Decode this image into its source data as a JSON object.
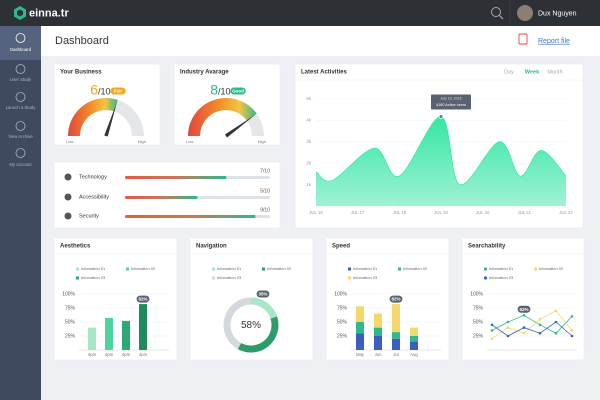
{
  "topbar": {
    "logo": "einna.tr",
    "user": "Dux Nguyen"
  },
  "sidebar": [
    "Dashboard",
    "User Study",
    "Launch a Study",
    "View Archive",
    "My Account"
  ],
  "header": {
    "title": "Dashboard",
    "report": "Report file"
  },
  "business": {
    "title": "Your Business",
    "score": 6,
    "out_of": "/10",
    "badge": "Fair",
    "low": "Low",
    "high": "High",
    "color": "#f5a623"
  },
  "industry": {
    "title": "Industry Avarage",
    "score": 8,
    "out_of": "/10",
    "badge": "Good",
    "low": "Low",
    "high": "High",
    "color": "#2fb88a"
  },
  "progress": [
    {
      "label": "Technology",
      "value": "7/10"
    },
    {
      "label": "Accessibility",
      "value": "5/10"
    },
    {
      "label": "Security",
      "value": "9/10"
    }
  ],
  "activities": {
    "title": "Latest Activities",
    "tabs": [
      "Day",
      "Week",
      "Month"
    ],
    "active_tab": 1,
    "ylim": [
      0,
      5
    ],
    "yticks": [
      {
        "value": 1,
        "label": "1k"
      },
      {
        "value": 2,
        "label": "2k"
      },
      {
        "value": 3,
        "label": "3k"
      },
      {
        "value": 4,
        "label": "4k"
      },
      {
        "value": 5,
        "label": "5k"
      }
    ],
    "xlim": [
      16,
      22
    ],
    "xticks": [
      {
        "value": 16,
        "label": "JUL 16"
      },
      {
        "value": 17,
        "label": "JUL 17"
      },
      {
        "value": 18,
        "label": "JUL 18"
      },
      {
        "value": 19,
        "label": "JUL 19"
      },
      {
        "value": 20,
        "label": "JUL 20"
      },
      {
        "value": 21,
        "label": "JUL 21"
      },
      {
        "value": 22,
        "label": "JUL 22"
      }
    ],
    "x": [
      16,
      16.4,
      17.4,
      18,
      19,
      19.45,
      20.4,
      20.9,
      21.4,
      22
    ],
    "values": [
      1.6,
      1.2,
      2.7,
      1.4,
      4.18,
      1.0,
      3.0,
      1.4,
      2.6,
      1.4
    ],
    "color": "#3de8a8",
    "tooltip": {
      "date": "July 19, 2016",
      "text": "4180 Active users"
    }
  },
  "aesthetics": {
    "title": "Aesthetics",
    "legend": [
      {
        "name": "Infomation 01",
        "color": "#a8e6c8"
      },
      {
        "name": "Infomation 02",
        "color": "#4bd3a0"
      },
      {
        "name": "Infomation 03",
        "color": "#2aa876"
      }
    ],
    "ylim": [
      0,
      100
    ],
    "yticks": [
      {
        "value": 100,
        "label": "100%"
      },
      {
        "value": 75,
        "label": "75%"
      },
      {
        "value": 50,
        "label": "50%"
      },
      {
        "value": 25,
        "label": "25%"
      }
    ],
    "categories": [
      "4pm",
      "4pm",
      "4pm",
      "4pm"
    ],
    "values": [
      40,
      57,
      52,
      82
    ],
    "colors": [
      "#a8e6c8",
      "#4bd3a0",
      "#2aa876",
      "#1f8a5e"
    ],
    "badge": "82%"
  },
  "navigation": {
    "title": "Navigation",
    "legend": [
      {
        "name": "Infomation 01",
        "color": "#a8e6c8"
      },
      {
        "name": "Infomation 02",
        "color": "#2e9c6a"
      },
      {
        "name": "Infomation 03",
        "color": "#d5d9dd"
      }
    ],
    "values": [
      20,
      38,
      42
    ],
    "center": "58%",
    "badge": "35%"
  },
  "speed": {
    "title": "Speed",
    "legend": [
      {
        "name": "Infomation 01",
        "color": "#3b5fc0"
      },
      {
        "name": "Infomation 02",
        "color": "#2fb88a"
      },
      {
        "name": "Infomation 03",
        "color": "#f5d76e"
      }
    ],
    "ylim": [
      0,
      100
    ],
    "yticks": [
      {
        "value": 100,
        "label": "100%"
      },
      {
        "value": 75,
        "label": "75%"
      },
      {
        "value": 50,
        "label": "50%"
      },
      {
        "value": 25,
        "label": "25%"
      }
    ],
    "categories": [
      "May",
      "Jun",
      "Jul",
      "Aug"
    ],
    "series": [
      {
        "name": "Infomation 01",
        "color": "#3b5fc0",
        "values": [
          30,
          25,
          20,
          15
        ]
      },
      {
        "name": "Infomation 02",
        "color": "#2fb88a",
        "values": [
          20,
          15,
          12,
          10
        ]
      },
      {
        "name": "Infomation 03",
        "color": "#f5d76e",
        "values": [
          28,
          25,
          50,
          15
        ]
      }
    ],
    "badge": "82%"
  },
  "searchability": {
    "title": "Searchability",
    "legend": [
      {
        "name": "Infomation 01",
        "color": "#2fb88a"
      },
      {
        "name": "Infomation 02",
        "color": "#f5d76e"
      },
      {
        "name": "Infomation 03",
        "color": "#3b5fc0"
      }
    ],
    "ylim": [
      0,
      100
    ],
    "yticks": [
      {
        "value": 100,
        "label": "100%"
      },
      {
        "value": 75,
        "label": "75%"
      },
      {
        "value": 50,
        "label": "50%"
      },
      {
        "value": 25,
        "label": "25%"
      }
    ],
    "series": [
      {
        "name": "Infomation 01",
        "color": "#2fb88a",
        "values": [
          35,
          50,
          62,
          45,
          30,
          60
        ]
      },
      {
        "name": "Infomation 02",
        "color": "#f5d76e",
        "values": [
          20,
          40,
          30,
          55,
          70,
          35
        ]
      },
      {
        "name": "Infomation 03",
        "color": "#3b5fc0",
        "values": [
          45,
          25,
          40,
          30,
          50,
          25
        ]
      }
    ],
    "badge": "62%"
  }
}
